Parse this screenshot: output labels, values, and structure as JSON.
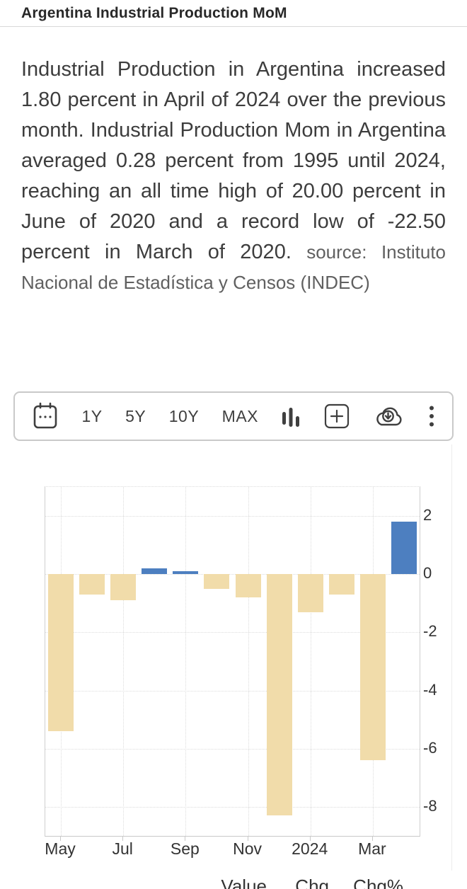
{
  "header": {
    "title": "Argentina Industrial Production MoM"
  },
  "description": {
    "main": "Industrial Production in Argentina increased 1.80 percent in April of 2024 over the previous month. Industrial Production Mom in Argentina averaged 0.28 percent from 1995 until 2024, reaching an all time high of 20.00 percent in June of 2020 and a record low of -22.50 percent in March of 2020. ",
    "source": "source: Instituto Nacional de Estadística y Censos (INDEC)"
  },
  "toolbar": {
    "ranges": [
      "1Y",
      "5Y",
      "10Y",
      "MAX"
    ],
    "icons": [
      "calendar-icon",
      "bar-chart-type-icon",
      "add-compare-icon",
      "cloud-download-icon",
      "more-menu-icon"
    ]
  },
  "chart_data": {
    "type": "bar",
    "title": "Argentina Industrial Production MoM",
    "unit": "%",
    "categories": [
      "May 2023",
      "Jun 2023",
      "Jul 2023",
      "Aug 2023",
      "Sep 2023",
      "Oct 2023",
      "Nov 2023",
      "Dec 2023",
      "Jan 2024",
      "Feb 2024",
      "Mar 2024",
      "Apr 2024"
    ],
    "values": [
      -5.4,
      -0.7,
      -0.9,
      0.2,
      0.1,
      -0.5,
      -0.8,
      -8.3,
      -1.3,
      -0.7,
      -6.4,
      1.8
    ],
    "x_tick_labels": [
      "May",
      "Jul",
      "Sep",
      "Nov",
      "2024",
      "Mar"
    ],
    "x_tick_indices": [
      0,
      2,
      4,
      6,
      8,
      10
    ],
    "y_ticks": [
      2,
      0,
      -2,
      -4,
      -6,
      -8
    ],
    "ylim": [
      -9,
      3
    ],
    "grid": "dotted",
    "legend": "none",
    "colors": {
      "positive_bar": "#4d7fc0",
      "negative_bar": "#f1dcaa"
    }
  },
  "table": {
    "columns": [
      "Value",
      "Chg",
      "Chg%"
    ],
    "link_color": "#4da0d2"
  }
}
